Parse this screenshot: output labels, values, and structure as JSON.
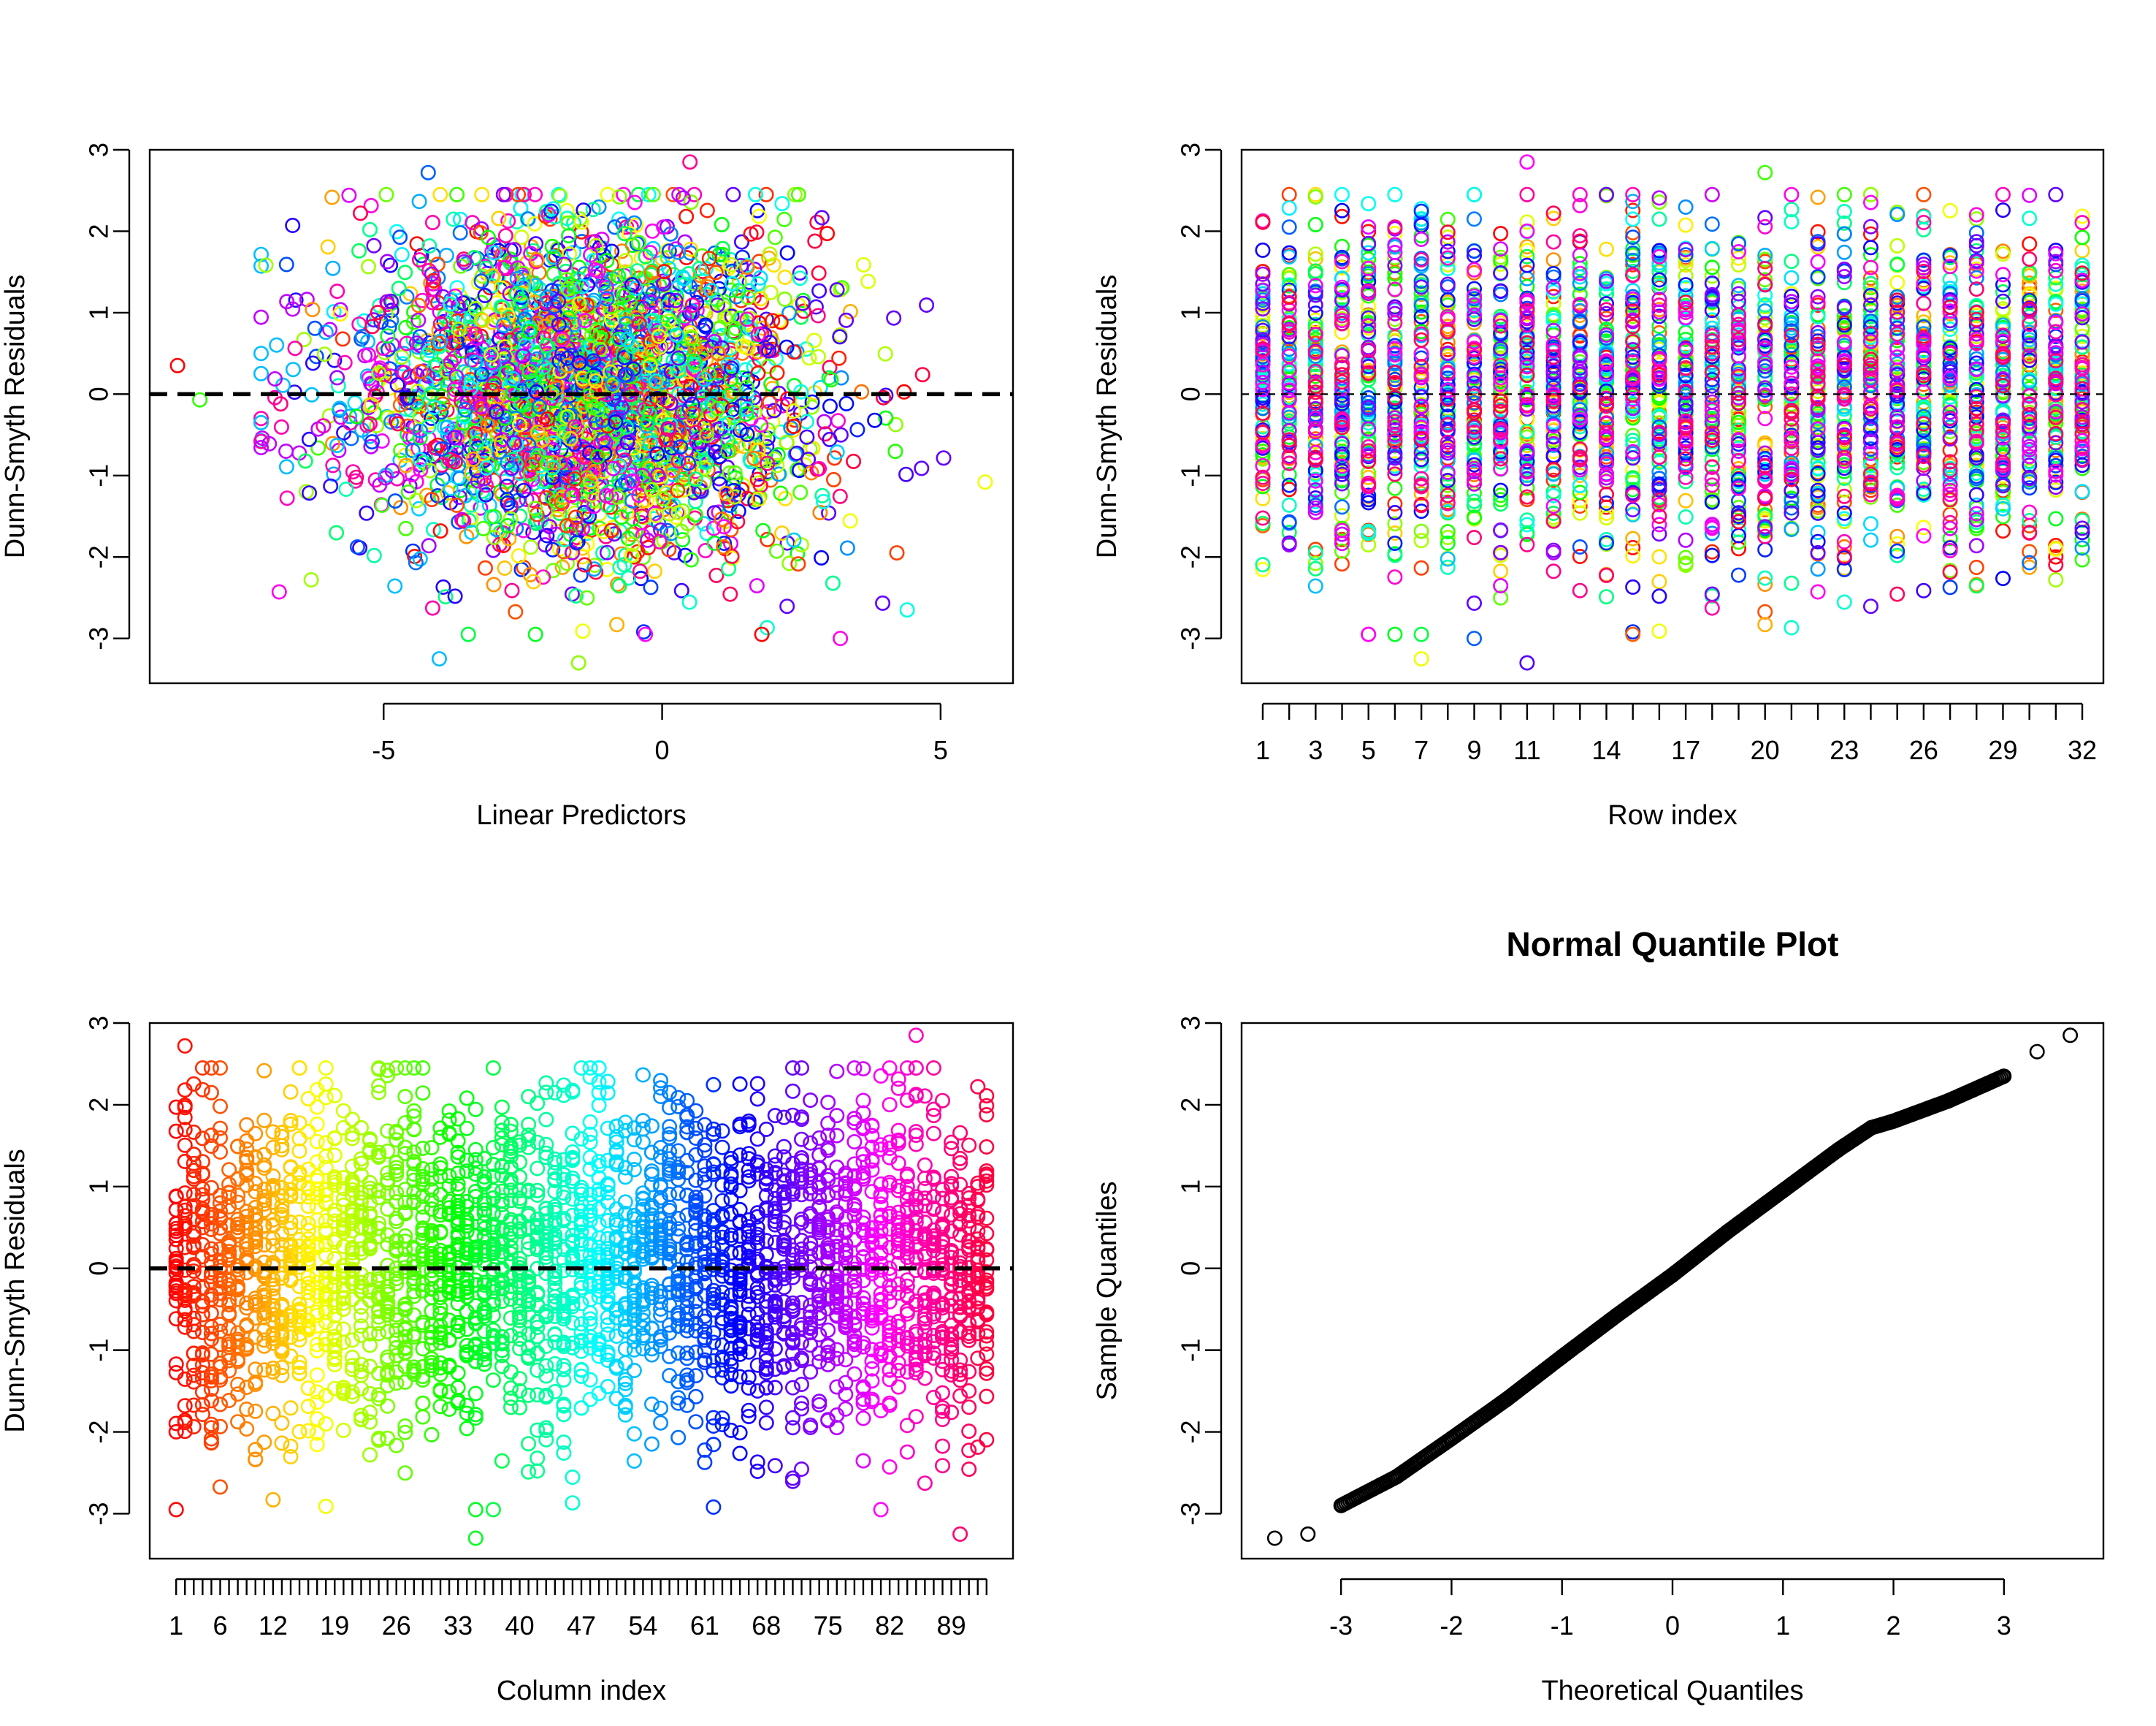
{
  "chart_data": [
    {
      "type": "scatter",
      "title": "",
      "xlabel": "Linear Predictors",
      "ylabel": "Dunn-Smyth Residuals",
      "xlim": [
        -9.2,
        6.3
      ],
      "ylim": [
        -3.55,
        3.0
      ],
      "x_ticks": [
        -5,
        0,
        5
      ],
      "y_ticks": [
        -3,
        -2,
        -1,
        0,
        1,
        2,
        3
      ],
      "reference_line": {
        "y": 0,
        "style": "dashed",
        "color": "#000000"
      },
      "color_scheme": "rainbow by column",
      "approx_center": {
        "x": -1.5,
        "y": 0.2
      },
      "notable_points": [
        {
          "x": -8.7,
          "y": 0.35
        },
        {
          "x": -8.3,
          "y": -0.07
        },
        {
          "x": -4.2,
          "y": 2.72
        },
        {
          "x": 0.5,
          "y": 2.85
        },
        {
          "x": -1.5,
          "y": -3.3
        },
        {
          "x": -4.0,
          "y": -3.25
        },
        {
          "x": 3.2,
          "y": -3.0
        },
        {
          "x": 5.8,
          "y": -1.08
        },
        {
          "x": 4.4,
          "y": -2.65
        }
      ],
      "n_points": 2976
    },
    {
      "type": "scatter",
      "title": "",
      "xlabel": "Row index",
      "ylabel": "Dunn-Smyth Residuals",
      "xlim": [
        0.2,
        32.8
      ],
      "ylim": [
        -3.55,
        3.0
      ],
      "x_ticks": [
        1,
        3,
        5,
        7,
        9,
        11,
        14,
        17,
        20,
        23,
        26,
        29,
        32
      ],
      "y_ticks": [
        -3,
        -2,
        -1,
        0,
        1,
        2,
        3
      ],
      "reference_line": {
        "y": 0,
        "style": "dashed",
        "color": "#000000"
      },
      "rows": 32,
      "points_per_row": 93,
      "notable_points": [
        {
          "x": 11,
          "y": 2.85
        },
        {
          "x": 20,
          "y": 2.72
        },
        {
          "x": 11,
          "y": -3.3
        },
        {
          "x": 7,
          "y": -3.25
        },
        {
          "x": 9,
          "y": -3.0
        },
        {
          "x": 15,
          "y": -2.95
        }
      ]
    },
    {
      "type": "scatter",
      "title": "",
      "xlabel": "Column index",
      "ylabel": "Dunn-Smyth Residuals",
      "xlim": [
        -2.0,
        96.0
      ],
      "ylim": [
        -3.55,
        3.0
      ],
      "x_ticks": [
        1,
        6,
        12,
        19,
        26,
        33,
        40,
        47,
        54,
        61,
        68,
        75,
        82,
        89
      ],
      "y_ticks": [
        -3,
        -2,
        -1,
        0,
        1,
        2,
        3
      ],
      "reference_line": {
        "y": 0,
        "style": "dashed",
        "color": "#000000"
      },
      "columns": 93,
      "points_per_column": 32,
      "color_scheme": "rainbow by column",
      "notable_points": [
        {
          "x": 2,
          "y": 2.72
        },
        {
          "x": 85,
          "y": 2.85
        },
        {
          "x": 35,
          "y": -3.3
        },
        {
          "x": 90,
          "y": -3.25
        }
      ]
    },
    {
      "type": "scatter",
      "title": "Normal Quantile Plot",
      "xlabel": "Theoretical Quantiles",
      "ylabel": "Sample Quantiles",
      "xlim": [
        -3.9,
        3.9
      ],
      "ylim": [
        -3.55,
        3.0
      ],
      "x_ticks": [
        -3,
        -2,
        -1,
        0,
        1,
        2,
        3
      ],
      "y_ticks": [
        -3,
        -2,
        -1,
        0,
        1,
        2,
        3
      ],
      "point_color": "#000000",
      "n_points": 2976,
      "curve_points": [
        {
          "x": -3.6,
          "y": -3.3
        },
        {
          "x": -3.3,
          "y": -3.25
        },
        {
          "x": -3.0,
          "y": -2.9
        },
        {
          "x": -2.5,
          "y": -2.55
        },
        {
          "x": -2.0,
          "y": -2.08
        },
        {
          "x": -1.5,
          "y": -1.6
        },
        {
          "x": -1.0,
          "y": -1.08
        },
        {
          "x": -0.5,
          "y": -0.57
        },
        {
          "x": 0.0,
          "y": -0.08
        },
        {
          "x": 0.5,
          "y": 0.45
        },
        {
          "x": 1.0,
          "y": 0.95
        },
        {
          "x": 1.5,
          "y": 1.45
        },
        {
          "x": 1.8,
          "y": 1.72
        },
        {
          "x": 2.0,
          "y": 1.8
        },
        {
          "x": 2.5,
          "y": 2.05
        },
        {
          "x": 3.0,
          "y": 2.35
        },
        {
          "x": 3.3,
          "y": 2.65
        },
        {
          "x": 3.6,
          "y": 2.85
        }
      ]
    }
  ]
}
